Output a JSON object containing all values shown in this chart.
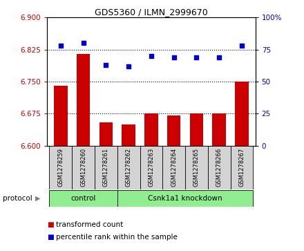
{
  "title": "GDS5360 / ILMN_2999670",
  "samples": [
    "GSM1278259",
    "GSM1278260",
    "GSM1278261",
    "GSM1278262",
    "GSM1278263",
    "GSM1278264",
    "GSM1278265",
    "GSM1278266",
    "GSM1278267"
  ],
  "bar_values": [
    6.74,
    6.815,
    6.655,
    6.65,
    6.675,
    6.67,
    6.675,
    6.675,
    6.75
  ],
  "bar_base": 6.6,
  "percentile_values": [
    78,
    80,
    63,
    62,
    70,
    69,
    69,
    69,
    78
  ],
  "ylim_left": [
    6.6,
    6.9
  ],
  "ylim_right": [
    0,
    100
  ],
  "yticks_left": [
    6.6,
    6.675,
    6.75,
    6.825,
    6.9
  ],
  "yticks_right": [
    0,
    25,
    50,
    75,
    100
  ],
  "ytick_labels_right": [
    "0",
    "25",
    "50",
    "75",
    "100%"
  ],
  "hlines": [
    6.825,
    6.75,
    6.675
  ],
  "bar_color": "#cc0000",
  "dot_color": "#0000cc",
  "control_label": "control",
  "knockdown_label": "Csnk1a1 knockdown",
  "control_indices": [
    0,
    1,
    2
  ],
  "knockdown_indices": [
    3,
    4,
    5,
    6,
    7,
    8
  ],
  "protocol_label": "protocol",
  "legend_bar_label": "transformed count",
  "legend_dot_label": "percentile rank within the sample",
  "bg_color": "#ffffff",
  "plot_bg_color": "#ffffff",
  "tick_color_left": "#cc0000",
  "tick_color_right": "#0000cc",
  "sample_bg_color": "#d3d3d3",
  "green_bg_color": "#90ee90"
}
